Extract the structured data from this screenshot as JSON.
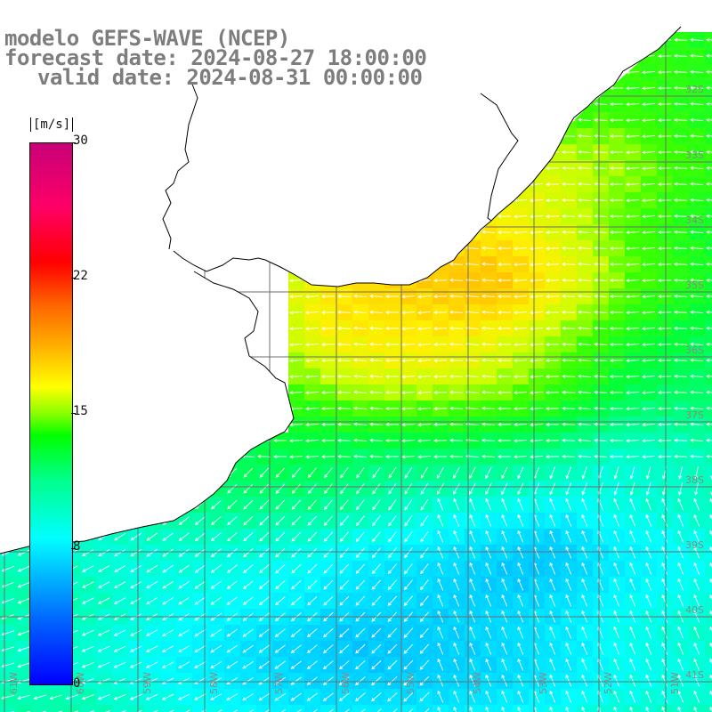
{
  "title": {
    "line1": "modelo GEFS-WAVE (NCEP)",
    "line2": "forecast date: 2024-08-27 18:00:00",
    "line3": "valid date: 2024-08-31 00:00:00"
  },
  "colorbar": {
    "unit": "[m/s]",
    "ticks": [
      "30",
      "22",
      "15",
      "8",
      "0"
    ]
  },
  "lat_labels": [
    "32S",
    "33S",
    "34S",
    "35S",
    "36S",
    "37S",
    "38S",
    "39S",
    "40S",
    "41S"
  ],
  "lon_labels": [
    "61W",
    "60W",
    "59W",
    "58W",
    "57W",
    "56W",
    "55W",
    "54W",
    "53W",
    "52W",
    "51W"
  ],
  "colors": {
    "land": "#ffffff",
    "coast": "#000000",
    "grid": "#6e6e6e",
    "arrow": "#ffffff",
    "title_text": "#7d7d7d"
  }
}
